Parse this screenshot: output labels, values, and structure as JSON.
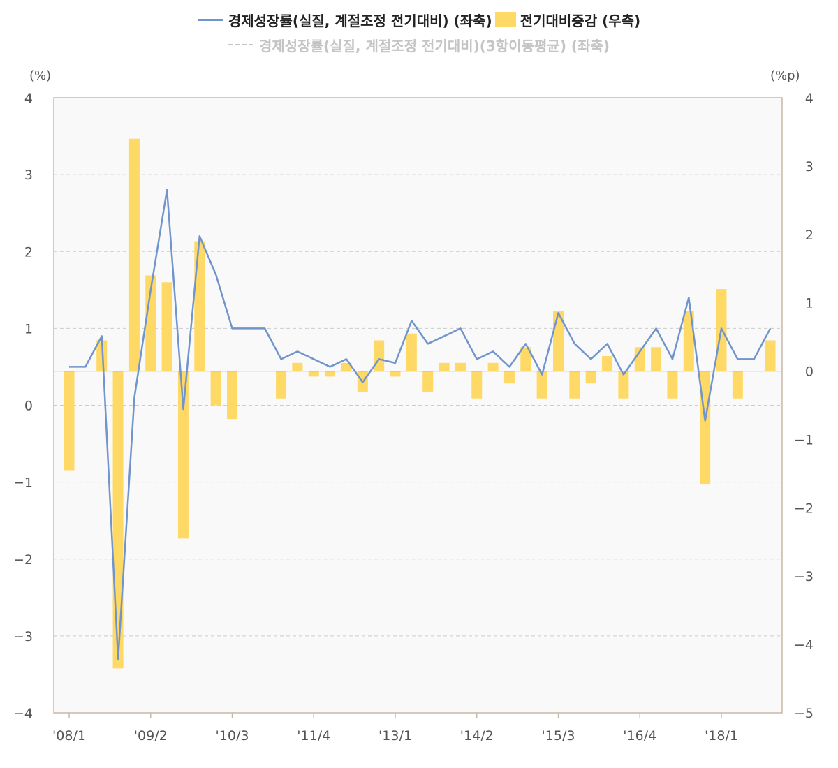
{
  "chart_data": {
    "type": "bar",
    "legend": [
      {
        "name": "경제성장률(실질, 계절조정 전기대비) (좌축)",
        "kind": "line",
        "color": "#7094cc"
      },
      {
        "name": "전기대비증감 (우측)",
        "kind": "bar",
        "color": "#ffd966"
      },
      {
        "name": "경제성장률(실질, 계절조정 전기대비)(3항이동평균) (좌축)",
        "kind": "dashed-line",
        "color": "#c4c4c4"
      }
    ],
    "left_axis": {
      "unit": "(%)",
      "ylim": [
        -4,
        4
      ],
      "ticks": [
        "4",
        "3",
        "2",
        "1",
        "0",
        "−1",
        "−2",
        "−3",
        "−4"
      ]
    },
    "right_axis": {
      "unit": "(%p)",
      "ylim": [
        -5,
        4
      ],
      "ticks": [
        "4",
        "3",
        "2",
        "1",
        "0",
        "−1",
        "−2",
        "−3",
        "−4",
        "−5"
      ]
    },
    "x_ticks": [
      {
        "label": "'08/1",
        "index": 0
      },
      {
        "label": "'09/2",
        "index": 5
      },
      {
        "label": "'10/3",
        "index": 10
      },
      {
        "label": "'11/4",
        "index": 15
      },
      {
        "label": "'13/1",
        "index": 20
      },
      {
        "label": "'14/2",
        "index": 25
      },
      {
        "label": "'15/3",
        "index": 30
      },
      {
        "label": "'16/4",
        "index": 35
      },
      {
        "label": "'18/1",
        "index": 40
      }
    ],
    "series": [
      {
        "name": "경제성장률(실질, 계절조정 전기대비) (좌축)",
        "type": "line",
        "axis": "left",
        "values": [
          0.5,
          0.5,
          0.9,
          -3.3,
          0.1,
          1.5,
          2.8,
          -0.05,
          2.2,
          1.7,
          1.0,
          1.0,
          1.0,
          0.6,
          0.7,
          0.6,
          0.5,
          0.6,
          0.3,
          0.6,
          0.55,
          1.1,
          0.8,
          0.9,
          1.0,
          0.6,
          0.7,
          0.5,
          0.8,
          0.4,
          1.2,
          0.8,
          0.6,
          0.8,
          0.4,
          0.7,
          1.0,
          0.6,
          1.4,
          -0.2,
          1.0,
          0.6,
          0.6,
          1.0
        ]
      },
      {
        "name": "전기대비증감 (우측)",
        "type": "bar",
        "axis": "right",
        "values": [
          -1.45,
          0.0,
          0.45,
          -4.35,
          3.4,
          1.4,
          1.3,
          -2.45,
          1.9,
          -0.5,
          -0.7,
          0.0,
          0.0,
          -0.4,
          0.12,
          -0.08,
          -0.08,
          0.12,
          -0.3,
          0.45,
          -0.08,
          0.55,
          -0.3,
          0.12,
          0.12,
          -0.4,
          0.12,
          -0.18,
          0.35,
          -0.4,
          0.88,
          -0.4,
          -0.18,
          0.22,
          -0.4,
          0.35,
          0.35,
          -0.4,
          0.88,
          -1.65,
          1.2,
          -0.4,
          0.0,
          0.45
        ]
      }
    ]
  }
}
